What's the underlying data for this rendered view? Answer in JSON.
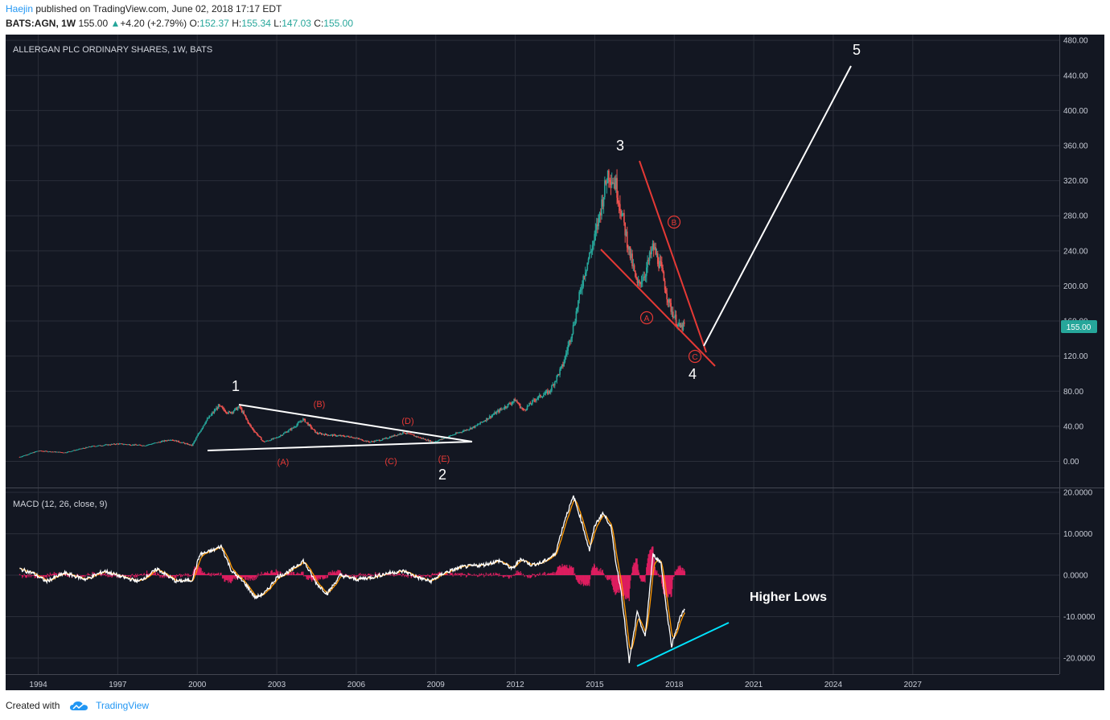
{
  "header": {
    "user": "Haejin",
    "published": "published on TradingView.com, June 02, 2018 17:17 EDT",
    "symbol": "BATS:AGN, 1W",
    "price": "155.00",
    "change": "+4.20 (+2.79%)",
    "o_label": "O:",
    "o": "152.37",
    "h_label": "H:",
    "h": "155.34",
    "l_label": "L:",
    "l": "147.03",
    "c_label": "C:",
    "c": "155.00"
  },
  "footer": {
    "created": "Created with",
    "brand": "TradingView"
  },
  "colors": {
    "background": "#131722",
    "grid": "#2a2e39",
    "candle_up": "#26a69a",
    "candle_down": "#ef5350",
    "annotation_red": "#e53935",
    "macd": "#ffffff",
    "signal": "#ff9800",
    "hist": "#e91e63",
    "support_cyan": "#00e5ff",
    "price_tag": "#26a69a"
  },
  "chart_data": [
    {
      "type": "candlestick",
      "title": "ALLERGAN PLC ORDINARY SHARES, 1W, BATS",
      "x_ticks": [
        "1994",
        "1997",
        "2000",
        "2003",
        "2006",
        "2009",
        "2012",
        "2015",
        "2018",
        "2021",
        "2024",
        "2027"
      ],
      "xlim": [
        1992.8,
        2032.5
      ],
      "y_ticks": [
        "0.00",
        "40.00",
        "80.00",
        "120.00",
        "160.00",
        "200.00",
        "240.00",
        "280.00",
        "320.00",
        "360.00",
        "400.00",
        "440.00",
        "480.00"
      ],
      "ylim": [
        -28,
        482
      ],
      "last_price": "155.00",
      "price_path": [
        [
          1993.3,
          5
        ],
        [
          1994.0,
          12
        ],
        [
          1995.0,
          10
        ],
        [
          1996.0,
          17
        ],
        [
          1997.0,
          20
        ],
        [
          1998.0,
          18
        ],
        [
          1999.0,
          25
        ],
        [
          1999.8,
          18
        ],
        [
          2000.3,
          45
        ],
        [
          2000.8,
          63
        ],
        [
          2001.2,
          55
        ],
        [
          2001.6,
          62
        ],
        [
          2002.0,
          40
        ],
        [
          2002.5,
          22
        ],
        [
          2003.0,
          27
        ],
        [
          2003.6,
          38
        ],
        [
          2004.0,
          48
        ],
        [
          2004.5,
          32
        ],
        [
          2005.0,
          30
        ],
        [
          2005.8,
          28
        ],
        [
          2006.5,
          22
        ],
        [
          2007.0,
          25
        ],
        [
          2007.8,
          33
        ],
        [
          2008.3,
          28
        ],
        [
          2008.9,
          22
        ],
        [
          2009.2,
          25
        ],
        [
          2009.8,
          32
        ],
        [
          2010.5,
          40
        ],
        [
          2011.0,
          50
        ],
        [
          2011.5,
          60
        ],
        [
          2012.0,
          70
        ],
        [
          2012.3,
          58
        ],
        [
          2012.8,
          72
        ],
        [
          2013.3,
          80
        ],
        [
          2013.8,
          110
        ],
        [
          2014.2,
          155
        ],
        [
          2014.6,
          215
        ],
        [
          2015.0,
          255
        ],
        [
          2015.3,
          300
        ],
        [
          2015.5,
          330
        ],
        [
          2015.8,
          315
        ],
        [
          2016.0,
          285
        ],
        [
          2016.3,
          240
        ],
        [
          2016.6,
          200
        ],
        [
          2016.9,
          215
        ],
        [
          2017.2,
          245
        ],
        [
          2017.5,
          220
        ],
        [
          2017.8,
          180
        ],
        [
          2018.0,
          165
        ],
        [
          2018.2,
          152
        ],
        [
          2018.4,
          155
        ]
      ],
      "annotations": {
        "waves": [
          "1",
          "2",
          "3",
          "4",
          "5"
        ],
        "triangle": [
          "(A)",
          "(B)",
          "(C)",
          "(D)",
          "(E)"
        ],
        "circled": [
          "A",
          "B",
          "C"
        ]
      }
    },
    {
      "type": "line",
      "title": "MACD (12, 26, close, 9)",
      "y_ticks": [
        "20.0000",
        "10.0000",
        "0.0000",
        "-10.0000",
        "-20.0000"
      ],
      "ylim": [
        -23.5,
        20
      ],
      "series": [],
      "macd_path": [
        [
          1993.3,
          1.5
        ],
        [
          1993.8,
          0.5
        ],
        [
          1994.3,
          -1.5
        ],
        [
          1995.0,
          0.5
        ],
        [
          1995.8,
          -1.0
        ],
        [
          1996.5,
          1
        ],
        [
          1997.2,
          -0.5
        ],
        [
          1997.8,
          -1.5
        ],
        [
          1998.5,
          1.5
        ],
        [
          1999.2,
          -1.5
        ],
        [
          1999.8,
          -1.2
        ],
        [
          2000.1,
          5
        ],
        [
          2000.6,
          6
        ],
        [
          2000.9,
          7
        ],
        [
          2001.3,
          1
        ],
        [
          2001.8,
          -2
        ],
        [
          2002.2,
          -5.5
        ],
        [
          2002.6,
          -4
        ],
        [
          2003.0,
          -0.5
        ],
        [
          2003.5,
          1
        ],
        [
          2004.0,
          3.5
        ],
        [
          2004.5,
          -2
        ],
        [
          2004.9,
          -4.5
        ],
        [
          2005.4,
          0
        ],
        [
          2006.0,
          -1
        ],
        [
          2006.6,
          -0.5
        ],
        [
          2007.2,
          0.5
        ],
        [
          2007.8,
          1
        ],
        [
          2008.3,
          -0.5
        ],
        [
          2008.8,
          -1.5
        ],
        [
          2009.3,
          0.5
        ],
        [
          2010.0,
          2
        ],
        [
          2010.8,
          2.5
        ],
        [
          2011.4,
          3.5
        ],
        [
          2011.9,
          1.5
        ],
        [
          2012.2,
          4
        ],
        [
          2012.6,
          2.5
        ],
        [
          2013.0,
          3
        ],
        [
          2013.5,
          5
        ],
        [
          2013.9,
          14
        ],
        [
          2014.2,
          19
        ],
        [
          2014.5,
          13
        ],
        [
          2014.8,
          6
        ],
        [
          2015.0,
          12
        ],
        [
          2015.3,
          15
        ],
        [
          2015.6,
          12
        ],
        [
          2015.8,
          3
        ],
        [
          2016.0,
          -4
        ],
        [
          2016.3,
          -21
        ],
        [
          2016.6,
          -9
        ],
        [
          2016.9,
          -15
        ],
        [
          2017.2,
          5
        ],
        [
          2017.5,
          3
        ],
        [
          2017.7,
          -8
        ],
        [
          2017.9,
          -17
        ],
        [
          2018.2,
          -10.5
        ],
        [
          2018.4,
          -8
        ]
      ],
      "labels": {
        "higher_lows": "Higher Lows"
      }
    }
  ]
}
